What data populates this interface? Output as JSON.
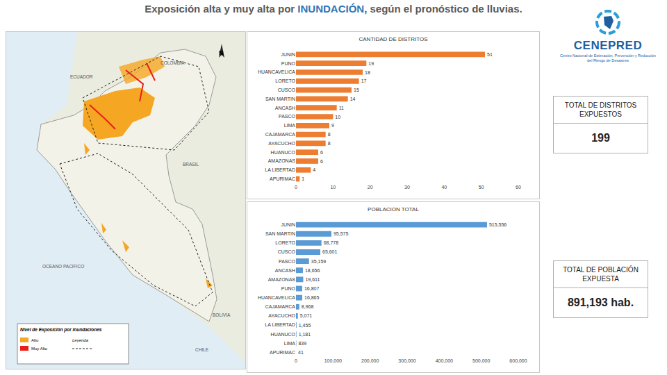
{
  "header": {
    "title_parts": [
      "Exposición alta y muy alta por ",
      "INUNDACIÓN",
      ", según el pronóstico de lluvias."
    ]
  },
  "logo": {
    "name": "CENEPRED",
    "subtitle": "Centro Nacional de Estimación, Prevención y Reducción del Riesgo de Desastres"
  },
  "totals": [
    {
      "label": "TOTAL DE DISTRITOS EXPUESTOS",
      "value": "199"
    },
    {
      "label": "TOTAL DE POBLACIÓN EXPUESTA",
      "value": "891,193 hab."
    }
  ],
  "map": {
    "labels": [
      "COLOMBIA",
      "ECUADOR",
      "BRASIL",
      "BOLIVIA",
      "CHILE",
      "OCEANO PACIFICO"
    ],
    "north": "N",
    "legend_title": "Nivel de Exposición por inundaciones",
    "legend_items": [
      {
        "label": "Alto",
        "color": "#f5a623"
      },
      {
        "label": "Muy Alto",
        "color": "#e8201a"
      }
    ],
    "boundary_label": "Leyenda"
  },
  "chart_data": [
    {
      "type": "bar",
      "title": "CANTIDAD DE DISTRITOS",
      "orientation": "horizontal",
      "categories": [
        "JUNIN",
        "PUNO",
        "HUANCAVELICA",
        "LORETO",
        "CUSCO",
        "SAN MARTIN",
        "ANCASH",
        "PASCO",
        "LIMA",
        "CAJAMARCA",
        "AYACUCHO",
        "HUANUCO",
        "AMAZONAS",
        "LA LIBERTAD",
        "APURIMAC"
      ],
      "values": [
        51,
        19,
        18,
        17,
        15,
        14,
        11,
        10,
        9,
        8,
        8,
        6,
        6,
        4,
        1
      ],
      "color": "#ed7d31",
      "data_labels": true,
      "grid": false,
      "xlim": [
        0,
        60
      ],
      "xticks": [
        0,
        10,
        20,
        30,
        40,
        50,
        60
      ]
    },
    {
      "type": "bar",
      "title": "POBLACION TOTAL",
      "orientation": "horizontal",
      "categories": [
        "JUNIN",
        "SAN MARTIN",
        "LORETO",
        "CUSCO",
        "PASCO",
        "ANCASH",
        "AMAZONAS",
        "PUNO",
        "HUANCAVELICA",
        "CAJAMARCA",
        "AYACUCHO",
        "LA LIBERTAD",
        "HUANUCO",
        "LIMA",
        "APURIMAC"
      ],
      "values": [
        515556,
        95575,
        68778,
        65601,
        35159,
        18656,
        19611,
        16807,
        16865,
        8968,
        5071,
        1455,
        1181,
        839,
        41
      ],
      "value_labels": [
        "515,556",
        "95,575",
        "68,778",
        "65,601",
        "35,159",
        "18,656",
        "19,611",
        "16,807",
        "16,865",
        "8,968",
        "5,071",
        "1,455",
        "1,181",
        "839",
        "41"
      ],
      "color": "#5b9bd5",
      "data_labels": true,
      "grid": false,
      "xlim": [
        0,
        600000
      ],
      "xticks": [
        0,
        {
          "value": 100000,
          "label": "100,000"
        },
        {
          "value": 200000,
          "label": "200,000"
        },
        {
          "value": 300000,
          "label": "300,000"
        },
        {
          "value": 400000,
          "label": "400,000"
        },
        {
          "value": 500000,
          "label": "500,000"
        },
        {
          "value": 600000,
          "label": "600,000"
        }
      ]
    }
  ]
}
